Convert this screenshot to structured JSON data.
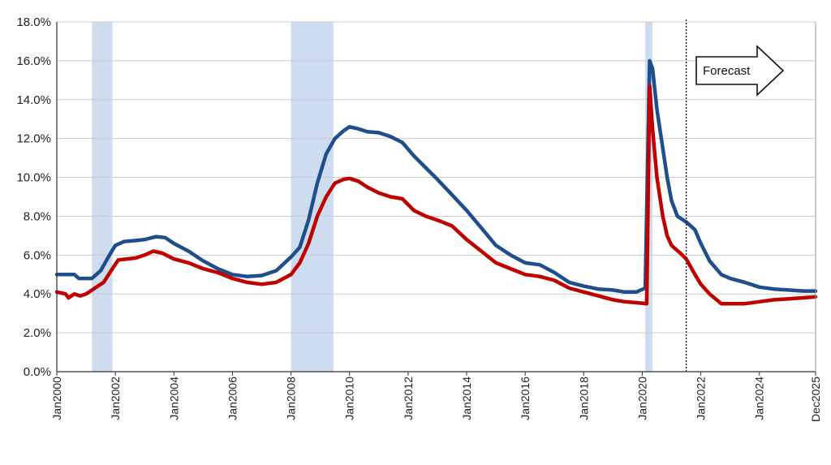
{
  "chart_data": {
    "type": "line",
    "title": "",
    "xlabel": "",
    "ylabel": "",
    "x_range": [
      2000.0,
      2025.92
    ],
    "ylim": [
      0,
      18
    ],
    "y_ticks": [
      {
        "value": 0,
        "label": "0.0%"
      },
      {
        "value": 2,
        "label": "2.0%"
      },
      {
        "value": 4,
        "label": "4.0%"
      },
      {
        "value": 6,
        "label": "6.0%"
      },
      {
        "value": 8,
        "label": "8.0%"
      },
      {
        "value": 10,
        "label": "10.0%"
      },
      {
        "value": 12,
        "label": "12.0%"
      },
      {
        "value": 14,
        "label": "14.0%"
      },
      {
        "value": 16,
        "label": "16.0%"
      },
      {
        "value": 18,
        "label": "18.0%"
      }
    ],
    "x_ticks": [
      {
        "value": 2000,
        "label": "Jan2000"
      },
      {
        "value": 2002,
        "label": "Jan2002"
      },
      {
        "value": 2004,
        "label": "Jan2004"
      },
      {
        "value": 2006,
        "label": "Jan2006"
      },
      {
        "value": 2008,
        "label": "Jan2008"
      },
      {
        "value": 2010,
        "label": "Jan2010"
      },
      {
        "value": 2012,
        "label": "Jan2012"
      },
      {
        "value": 2014,
        "label": "Jan2014"
      },
      {
        "value": 2016,
        "label": "Jan2016"
      },
      {
        "value": 2018,
        "label": "Jan2018"
      },
      {
        "value": 2020,
        "label": "Jan2020"
      },
      {
        "value": 2022,
        "label": "Jan2022"
      },
      {
        "value": 2024,
        "label": "Jan2024"
      },
      {
        "value": 2025.92,
        "label": "Dec2025"
      }
    ],
    "grid": true,
    "recession_bands": [
      {
        "start": 2001.2,
        "end": 2001.9
      },
      {
        "start": 2008.0,
        "end": 2009.45
      },
      {
        "start": 2020.1,
        "end": 2020.35
      }
    ],
    "forecast_start": 2021.5,
    "forecast_label": "Forecast",
    "series": [
      {
        "color": "#1f4e8c",
        "points": [
          [
            2000.0,
            5.0
          ],
          [
            2000.6,
            5.0
          ],
          [
            2000.75,
            4.8
          ],
          [
            2001.2,
            4.8
          ],
          [
            2001.5,
            5.2
          ],
          [
            2001.8,
            6.0
          ],
          [
            2002.0,
            6.5
          ],
          [
            2002.3,
            6.7
          ],
          [
            2002.7,
            6.75
          ],
          [
            2003.0,
            6.8
          ],
          [
            2003.4,
            6.95
          ],
          [
            2003.7,
            6.9
          ],
          [
            2004.0,
            6.6
          ],
          [
            2004.5,
            6.2
          ],
          [
            2005.0,
            5.7
          ],
          [
            2005.5,
            5.3
          ],
          [
            2006.0,
            5.0
          ],
          [
            2006.5,
            4.9
          ],
          [
            2007.0,
            4.95
          ],
          [
            2007.5,
            5.2
          ],
          [
            2008.0,
            5.9
          ],
          [
            2008.3,
            6.4
          ],
          [
            2008.6,
            7.8
          ],
          [
            2008.9,
            9.7
          ],
          [
            2009.2,
            11.2
          ],
          [
            2009.5,
            12.0
          ],
          [
            2009.8,
            12.4
          ],
          [
            2010.0,
            12.6
          ],
          [
            2010.3,
            12.5
          ],
          [
            2010.6,
            12.35
          ],
          [
            2011.0,
            12.3
          ],
          [
            2011.4,
            12.1
          ],
          [
            2011.8,
            11.8
          ],
          [
            2012.2,
            11.1
          ],
          [
            2012.6,
            10.5
          ],
          [
            2013.0,
            9.9
          ],
          [
            2013.5,
            9.1
          ],
          [
            2014.0,
            8.3
          ],
          [
            2014.5,
            7.4
          ],
          [
            2015.0,
            6.5
          ],
          [
            2015.5,
            6.0
          ],
          [
            2016.0,
            5.6
          ],
          [
            2016.5,
            5.5
          ],
          [
            2017.0,
            5.1
          ],
          [
            2017.5,
            4.6
          ],
          [
            2018.0,
            4.4
          ],
          [
            2018.5,
            4.25
          ],
          [
            2019.0,
            4.2
          ],
          [
            2019.4,
            4.1
          ],
          [
            2019.8,
            4.1
          ],
          [
            2020.1,
            4.3
          ],
          [
            2020.25,
            16.0
          ],
          [
            2020.35,
            15.6
          ],
          [
            2020.5,
            13.5
          ],
          [
            2020.7,
            11.5
          ],
          [
            2020.85,
            10.0
          ],
          [
            2021.0,
            8.8
          ],
          [
            2021.2,
            8.0
          ],
          [
            2021.5,
            7.7
          ],
          [
            2021.8,
            7.3
          ],
          [
            2022.0,
            6.6
          ],
          [
            2022.3,
            5.7
          ],
          [
            2022.7,
            5.0
          ],
          [
            2023.0,
            4.8
          ],
          [
            2023.5,
            4.6
          ],
          [
            2024.0,
            4.35
          ],
          [
            2024.5,
            4.25
          ],
          [
            2025.0,
            4.2
          ],
          [
            2025.5,
            4.15
          ],
          [
            2025.92,
            4.15
          ]
        ]
      },
      {
        "color": "#c00000",
        "points": [
          [
            2000.0,
            4.1
          ],
          [
            2000.3,
            4.0
          ],
          [
            2000.4,
            3.8
          ],
          [
            2000.6,
            4.0
          ],
          [
            2000.8,
            3.9
          ],
          [
            2001.0,
            4.0
          ],
          [
            2001.3,
            4.3
          ],
          [
            2001.6,
            4.6
          ],
          [
            2001.9,
            5.3
          ],
          [
            2002.1,
            5.75
          ],
          [
            2002.4,
            5.8
          ],
          [
            2002.7,
            5.85
          ],
          [
            2003.0,
            6.0
          ],
          [
            2003.3,
            6.2
          ],
          [
            2003.6,
            6.1
          ],
          [
            2004.0,
            5.8
          ],
          [
            2004.5,
            5.6
          ],
          [
            2005.0,
            5.3
          ],
          [
            2005.5,
            5.1
          ],
          [
            2006.0,
            4.8
          ],
          [
            2006.5,
            4.6
          ],
          [
            2007.0,
            4.5
          ],
          [
            2007.5,
            4.6
          ],
          [
            2008.0,
            5.0
          ],
          [
            2008.3,
            5.6
          ],
          [
            2008.6,
            6.6
          ],
          [
            2008.9,
            8.0
          ],
          [
            2009.2,
            9.0
          ],
          [
            2009.5,
            9.7
          ],
          [
            2009.8,
            9.9
          ],
          [
            2010.0,
            9.95
          ],
          [
            2010.3,
            9.8
          ],
          [
            2010.6,
            9.5
          ],
          [
            2011.0,
            9.2
          ],
          [
            2011.4,
            9.0
          ],
          [
            2011.8,
            8.9
          ],
          [
            2012.2,
            8.3
          ],
          [
            2012.6,
            8.0
          ],
          [
            2013.0,
            7.8
          ],
          [
            2013.5,
            7.5
          ],
          [
            2014.0,
            6.8
          ],
          [
            2014.5,
            6.2
          ],
          [
            2015.0,
            5.6
          ],
          [
            2015.5,
            5.3
          ],
          [
            2016.0,
            5.0
          ],
          [
            2016.5,
            4.9
          ],
          [
            2017.0,
            4.7
          ],
          [
            2017.5,
            4.3
          ],
          [
            2018.0,
            4.1
          ],
          [
            2018.5,
            3.9
          ],
          [
            2019.0,
            3.7
          ],
          [
            2019.4,
            3.6
          ],
          [
            2019.8,
            3.55
          ],
          [
            2020.15,
            3.5
          ],
          [
            2020.25,
            14.7
          ],
          [
            2020.35,
            12.5
          ],
          [
            2020.5,
            10.0
          ],
          [
            2020.7,
            8.0
          ],
          [
            2020.85,
            7.0
          ],
          [
            2021.0,
            6.5
          ],
          [
            2021.3,
            6.1
          ],
          [
            2021.5,
            5.8
          ],
          [
            2021.8,
            5.0
          ],
          [
            2022.0,
            4.5
          ],
          [
            2022.3,
            4.0
          ],
          [
            2022.7,
            3.5
          ],
          [
            2023.0,
            3.5
          ],
          [
            2023.5,
            3.5
          ],
          [
            2024.0,
            3.6
          ],
          [
            2024.5,
            3.7
          ],
          [
            2025.0,
            3.75
          ],
          [
            2025.5,
            3.8
          ],
          [
            2025.92,
            3.85
          ]
        ]
      }
    ]
  }
}
